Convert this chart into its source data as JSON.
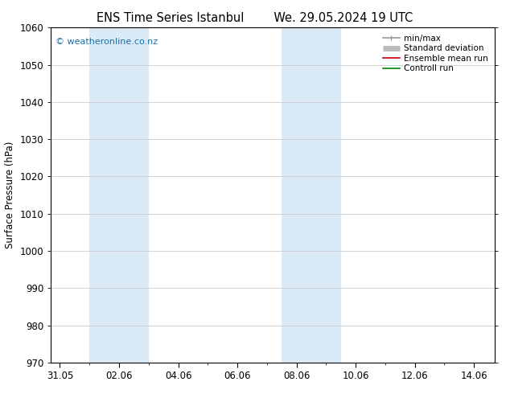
{
  "title_left": "ENS Time Series Istanbul",
  "title_right": "We. 29.05.2024 19 UTC",
  "ylabel": "Surface Pressure (hPa)",
  "ylim": [
    970,
    1060
  ],
  "yticks": [
    970,
    980,
    990,
    1000,
    1010,
    1020,
    1030,
    1040,
    1050,
    1060
  ],
  "xtick_labels": [
    "31.05",
    "02.06",
    "04.06",
    "06.06",
    "08.06",
    "10.06",
    "12.06",
    "14.06"
  ],
  "xtick_positions": [
    0,
    2,
    4,
    6,
    8,
    10,
    12,
    14
  ],
  "xlim": [
    -0.3,
    14.7
  ],
  "shade_bands": [
    {
      "xmin": 1.0,
      "xmax": 3.0
    },
    {
      "xmin": 7.5,
      "xmax": 9.5
    }
  ],
  "shade_color": "#dbeaf7",
  "watermark": "© weatheronline.co.nz",
  "watermark_color": "#1a6fa8",
  "legend_items": [
    {
      "label": "min/max",
      "color": "#999999",
      "lw": 1.2
    },
    {
      "label": "Standard deviation",
      "color": "#bbbbbb",
      "lw": 5
    },
    {
      "label": "Ensemble mean run",
      "color": "#cc0000",
      "lw": 1.2
    },
    {
      "label": "Controll run",
      "color": "#008800",
      "lw": 1.2
    }
  ],
  "bg_color": "#ffffff",
  "grid_color": "#cccccc",
  "title_fontsize": 10.5,
  "axis_fontsize": 8.5,
  "watermark_fontsize": 8
}
